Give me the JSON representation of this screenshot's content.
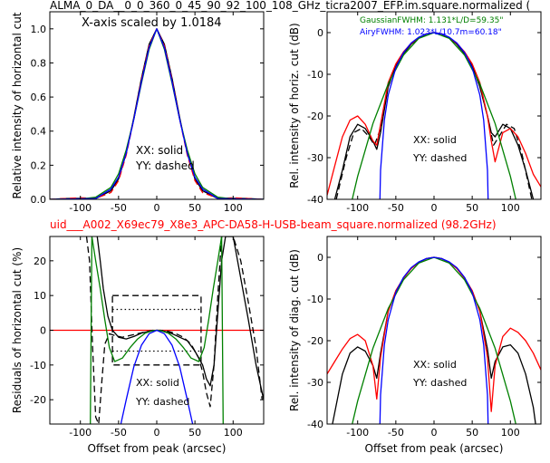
{
  "figure": {
    "title_top": "ALMA_0_DA__0_0_360_0_45_90_92_100_108_GHz_ticra2007_EFP.im.square.normalized (",
    "title_mid": "uid___A002_X69ec79_X8e3_APC-DA58-H-USB-beam_square.normalized (98.2GHz)",
    "colors": {
      "black": "#000000",
      "red": "#ff0000",
      "green": "#008000",
      "blue": "#0000ff",
      "title_red": "#ff0000"
    }
  },
  "chart_data": [
    {
      "id": "horiz-linear",
      "type": "line",
      "title": "",
      "xlabel": "",
      "ylabel": "Relative intensity of horizontal cut",
      "xlim": [
        -140,
        140
      ],
      "ylim": [
        0,
        1.1
      ],
      "xticks": [
        -100,
        -50,
        0,
        50,
        100
      ],
      "yticks": [
        0.0,
        0.2,
        0.4,
        0.6,
        0.8,
        1.0
      ],
      "annotation": "X-axis scaled by 1.0184",
      "labels": [
        "XX: solid",
        "YY: dashed"
      ],
      "series": [
        {
          "color": "black",
          "style": "solid",
          "x": [
            -140,
            -120,
            -100,
            -80,
            -60,
            -50,
            -40,
            -30,
            -20,
            -10,
            0,
            10,
            20,
            30,
            40,
            50,
            60,
            80,
            100,
            120,
            140
          ],
          "y": [
            0,
            0.004,
            0.006,
            0.004,
            0.05,
            0.12,
            0.27,
            0.48,
            0.71,
            0.91,
            1.0,
            0.91,
            0.71,
            0.48,
            0.27,
            0.12,
            0.05,
            0.004,
            0.006,
            0.004,
            0
          ]
        },
        {
          "color": "red",
          "style": "dashed",
          "x": [
            -140,
            -120,
            -100,
            -80,
            -60,
            -50,
            -40,
            -30,
            -20,
            -10,
            0,
            10,
            20,
            30,
            40,
            50,
            60,
            80,
            100,
            120,
            140
          ],
          "y": [
            0,
            0.005,
            0.009,
            0.006,
            0.04,
            0.11,
            0.26,
            0.47,
            0.7,
            0.9,
            1.0,
            0.9,
            0.7,
            0.47,
            0.26,
            0.11,
            0.04,
            0.006,
            0.009,
            0.005,
            0
          ]
        },
        {
          "color": "green",
          "style": "solid",
          "x": [
            -140,
            -100,
            -80,
            -60,
            -50,
            -40,
            -30,
            -20,
            -10,
            0,
            10,
            20,
            30,
            40,
            50,
            60,
            80,
            100,
            140
          ],
          "y": [
            0,
            0.002,
            0.012,
            0.07,
            0.15,
            0.29,
            0.47,
            0.68,
            0.88,
            1.0,
            0.88,
            0.68,
            0.47,
            0.29,
            0.15,
            0.07,
            0.012,
            0.002,
            0
          ]
        },
        {
          "color": "blue",
          "style": "solid",
          "x": [
            -140,
            -80,
            -60,
            -50,
            -40,
            -30,
            -20,
            -10,
            0,
            10,
            20,
            30,
            40,
            50,
            60,
            80,
            140
          ],
          "y": [
            0,
            0.005,
            0.06,
            0.13,
            0.27,
            0.47,
            0.69,
            0.89,
            1.0,
            0.89,
            0.69,
            0.47,
            0.27,
            0.13,
            0.06,
            0.005,
            0
          ]
        }
      ]
    },
    {
      "id": "horiz-db",
      "type": "line",
      "title": "",
      "xlabel": "",
      "ylabel": "Rel. intensity of horiz. cut (dB)",
      "xlim": [
        -140,
        140
      ],
      "ylim": [
        -40,
        5
      ],
      "xticks": [
        -100,
        -50,
        0,
        50,
        100
      ],
      "yticks": [
        0,
        -10,
        -20,
        -30,
        -40
      ],
      "legend": [
        "GaussianFWHM: 1.131*L/D=59.35\"",
        "AiryFWHM: 1.023*L/10.7m=60.18\""
      ],
      "labels": [
        "XX: solid",
        "YY: dashed"
      ],
      "series": [
        {
          "color": "black",
          "style": "solid",
          "x": [
            -130,
            -120,
            -110,
            -100,
            -90,
            -80,
            -75,
            -70,
            -60,
            -50,
            -40,
            -30,
            -20,
            -10,
            0,
            10,
            20,
            30,
            40,
            50,
            60,
            70,
            75,
            80,
            90,
            100,
            110,
            120,
            130
          ],
          "y": [
            -40,
            -33,
            -25,
            -22,
            -23,
            -26,
            -28,
            -24,
            -13,
            -8,
            -5,
            -2.8,
            -1.3,
            -0.3,
            0,
            -0.3,
            -1.3,
            -2.8,
            -5,
            -8,
            -13,
            -20,
            -24,
            -25,
            -22,
            -23,
            -27,
            -33,
            -40
          ]
        },
        {
          "color": "black",
          "style": "dashed",
          "x": [
            -128,
            -115,
            -105,
            -95,
            -85,
            -78,
            -70,
            -60,
            -50,
            -40,
            -30,
            -20,
            -10,
            0,
            10,
            20,
            30,
            40,
            50,
            60,
            70,
            78,
            85,
            95,
            105,
            115,
            128
          ],
          "y": [
            -40,
            -30,
            -24,
            -23,
            -25,
            -27,
            -23,
            -13,
            -8,
            -5,
            -2.8,
            -1.3,
            -0.3,
            0,
            -0.3,
            -1.3,
            -2.8,
            -5,
            -8,
            -13,
            -20,
            -27,
            -25,
            -22,
            -23,
            -29,
            -40
          ]
        },
        {
          "color": "red",
          "style": "solid",
          "x": [
            -140,
            -130,
            -120,
            -110,
            -100,
            -90,
            -80,
            -75,
            -70,
            -60,
            -50,
            -40,
            -30,
            -20,
            -10,
            0,
            10,
            20,
            30,
            40,
            50,
            60,
            70,
            75,
            80,
            90,
            100,
            110,
            120,
            130,
            140
          ],
          "y": [
            -39,
            -32,
            -25,
            -21,
            -20,
            -22,
            -26,
            -27,
            -22,
            -12,
            -7.5,
            -4.6,
            -2.6,
            -1.2,
            -0.3,
            0,
            -0.3,
            -1.2,
            -2.6,
            -4.6,
            -7.5,
            -12,
            -20,
            -26,
            -31,
            -24,
            -23,
            -25,
            -29,
            -34,
            -37
          ]
        },
        {
          "color": "green",
          "style": "solid",
          "x": [
            -120,
            -100,
            -80,
            -60,
            -40,
            -20,
            0,
            20,
            40,
            60,
            80,
            100,
            120
          ],
          "y": [
            -50,
            -34.5,
            -21.8,
            -12.3,
            -5.4,
            -1.4,
            0,
            -1.4,
            -5.4,
            -12.3,
            -21.8,
            -34.5,
            -50
          ]
        },
        {
          "color": "blue",
          "style": "solid",
          "x": [
            -71,
            -70,
            -65,
            -60,
            -50,
            -40,
            -30,
            -20,
            -10,
            0,
            10,
            20,
            30,
            40,
            50,
            60,
            65,
            70,
            71
          ],
          "y": [
            -41,
            -33,
            -21,
            -15,
            -8.4,
            -4.8,
            -2.5,
            -1.1,
            -0.3,
            0,
            -0.3,
            -1.1,
            -2.5,
            -4.8,
            -8.4,
            -15,
            -21,
            -33,
            -41
          ]
        }
      ]
    },
    {
      "id": "residuals",
      "type": "line",
      "title": "",
      "xlabel": "Offset from peak (arcsec)",
      "ylabel": "Residuals of horizontal cut (%)",
      "xlim": [
        -140,
        140
      ],
      "ylim": [
        -27,
        27
      ],
      "xticks": [
        -100,
        -50,
        0,
        50,
        100
      ],
      "yticks": [
        20,
        10,
        0,
        -10,
        -20
      ],
      "labels": [
        "XX: solid",
        "YY: dashed"
      ],
      "series": [
        {
          "color": "red",
          "style": "solid",
          "x": [
            -140,
            140
          ],
          "y": [
            0,
            0
          ]
        },
        {
          "color": "black",
          "style": "dashed",
          "x": [
            -58,
            58,
            58,
            -58,
            -58
          ],
          "y": [
            10,
            10,
            -10,
            -10,
            10
          ]
        },
        {
          "color": "black",
          "style": "dotted",
          "x": [
            -58,
            58
          ],
          "y": [
            6,
            6
          ]
        },
        {
          "color": "black",
          "style": "dotted",
          "x": [
            -58,
            58
          ],
          "y": [
            -6,
            -6
          ]
        },
        {
          "color": "black",
          "style": "solid",
          "x": [
            -78,
            -74,
            -70,
            -64,
            -58,
            -50,
            -40,
            -30,
            -20,
            -10,
            0,
            10,
            20,
            30,
            40,
            50,
            60,
            65,
            70,
            75,
            80,
            85,
            90,
            100,
            110,
            120,
            130,
            140
          ],
          "y": [
            27,
            20,
            12,
            4,
            0,
            -2,
            -2.5,
            -1.8,
            -0.8,
            -0.3,
            0,
            -0.3,
            -1,
            -2,
            -3,
            -6,
            -10,
            -14,
            -16,
            -10,
            5,
            20,
            27,
            27,
            15,
            3,
            -10,
            -20
          ]
        },
        {
          "color": "black",
          "style": "dashed",
          "x": [
            -92,
            -88,
            -84,
            -80,
            -76,
            -72,
            -68,
            -62,
            -55,
            -45,
            -35,
            -25,
            -15,
            -5,
            0,
            5,
            15,
            25,
            35,
            45,
            55,
            60,
            65,
            70,
            75,
            80,
            85,
            90,
            95,
            100,
            110,
            120,
            130,
            138
          ],
          "y": [
            27,
            20,
            -5,
            -25,
            -27,
            -15,
            -4,
            -1,
            -1.5,
            -2,
            -1.5,
            -1,
            -0.5,
            0,
            0,
            0,
            -0.3,
            -1,
            -2,
            -4,
            -8,
            -12,
            -18,
            -22,
            -10,
            10,
            27,
            27,
            27,
            27,
            20,
            8,
            -5,
            -20
          ]
        },
        {
          "color": "green",
          "style": "solid",
          "x": [
            -87,
            -85,
            -80,
            -74,
            -68,
            -62,
            -55,
            -45,
            -35,
            -25,
            -15,
            -5,
            0,
            5,
            15,
            25,
            35,
            45,
            55,
            62,
            68,
            74,
            80,
            85,
            87
          ],
          "y": [
            -27,
            27,
            20,
            12,
            3,
            -5,
            -9,
            -8,
            -5,
            -2.5,
            -0.8,
            -0.1,
            0,
            -0.1,
            -0.8,
            -2.5,
            -5,
            -8,
            -9,
            -5,
            3,
            12,
            20,
            27,
            -27
          ]
        },
        {
          "color": "blue",
          "style": "solid",
          "x": [
            -47,
            -40,
            -30,
            -20,
            -10,
            0,
            10,
            20,
            30,
            40,
            47
          ],
          "y": [
            -27,
            -20,
            -10.5,
            -4.3,
            -1,
            0,
            -1,
            -4.3,
            -10.5,
            -20,
            -27
          ]
        }
      ]
    },
    {
      "id": "diag-db",
      "type": "line",
      "title": "",
      "xlabel": "Offset from peak (arcsec)",
      "ylabel": "Rel. intensity of diag. cut (dB)",
      "xlim": [
        -140,
        140
      ],
      "ylim": [
        -40,
        5
      ],
      "xticks": [
        -100,
        -50,
        0,
        50,
        100
      ],
      "yticks": [
        0,
        -10,
        -20,
        -30,
        -40
      ],
      "labels": [
        "XX: solid",
        "YY: dashed"
      ],
      "series": [
        {
          "color": "black",
          "style": "solid",
          "x": [
            -133,
            -120,
            -110,
            -100,
            -90,
            -80,
            -75,
            -70,
            -60,
            -50,
            -40,
            -30,
            -20,
            -10,
            0,
            10,
            20,
            30,
            40,
            50,
            60,
            70,
            75,
            80,
            90,
            100,
            110,
            120,
            130,
            133
          ],
          "y": [
            -40,
            -28,
            -23,
            -21.5,
            -22.5,
            -26,
            -29,
            -23,
            -13,
            -8,
            -5,
            -2.7,
            -1.2,
            -0.3,
            0,
            -0.3,
            -1.2,
            -2.7,
            -5,
            -8,
            -13,
            -22,
            -29,
            -25,
            -21.5,
            -21,
            -23,
            -28,
            -36,
            -40
          ]
        },
        {
          "color": "red",
          "style": "solid",
          "x": [
            -140,
            -130,
            -120,
            -110,
            -100,
            -90,
            -80,
            -75,
            -70,
            -60,
            -50,
            -40,
            -30,
            -20,
            -10,
            0,
            10,
            20,
            30,
            40,
            50,
            60,
            70,
            75,
            80,
            90,
            100,
            110,
            120,
            130,
            140
          ],
          "y": [
            -28,
            -25,
            -22,
            -19.5,
            -18.5,
            -20,
            -26,
            -34,
            -24,
            -13,
            -8,
            -5,
            -2.7,
            -1.2,
            -0.3,
            0,
            -0.3,
            -1.2,
            -2.7,
            -5,
            -8,
            -13,
            -24,
            -37,
            -26,
            -19,
            -17,
            -18,
            -20,
            -23,
            -27
          ]
        },
        {
          "color": "green",
          "style": "solid",
          "x": [
            -120,
            -100,
            -80,
            -60,
            -40,
            -20,
            0,
            20,
            40,
            60,
            80,
            100,
            120
          ],
          "y": [
            -50,
            -34.5,
            -21.8,
            -12.3,
            -5.4,
            -1.4,
            0,
            -1.4,
            -5.4,
            -12.3,
            -21.8,
            -34.5,
            -50
          ]
        },
        {
          "color": "blue",
          "style": "solid",
          "x": [
            -71,
            -70,
            -65,
            -60,
            -50,
            -40,
            -30,
            -20,
            -10,
            0,
            10,
            20,
            30,
            40,
            50,
            60,
            65,
            70,
            71
          ],
          "y": [
            -41,
            -33,
            -21,
            -15,
            -8.4,
            -4.8,
            -2.5,
            -1.1,
            -0.3,
            0,
            -0.3,
            -1.1,
            -2.5,
            -4.8,
            -8.4,
            -15,
            -21,
            -33,
            -41
          ]
        }
      ]
    }
  ]
}
